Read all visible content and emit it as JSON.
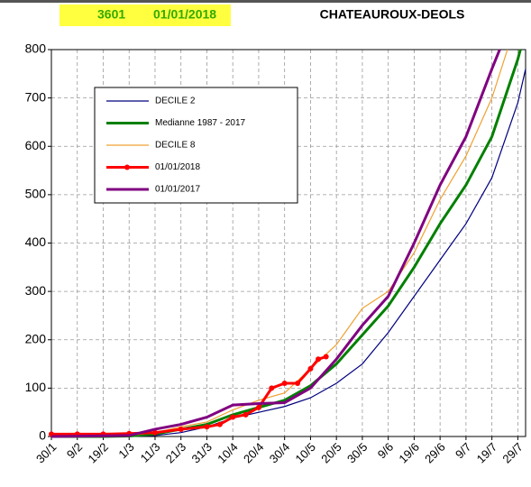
{
  "header": {
    "station": "3601",
    "date": "01/01/2018"
  },
  "chart_data": {
    "type": "line",
    "title": "CHATEAUROUX-DEOLS",
    "xlim": [
      0,
      183
    ],
    "xticks": [
      {
        "value": 0,
        "label": "30/1"
      },
      {
        "value": 10,
        "label": "9/2"
      },
      {
        "value": 20,
        "label": "19/2"
      },
      {
        "value": 30,
        "label": "1/3"
      },
      {
        "value": 40,
        "label": "11/3"
      },
      {
        "value": 50,
        "label": "21/3"
      },
      {
        "value": 60,
        "label": "31/3"
      },
      {
        "value": 70,
        "label": "10/4"
      },
      {
        "value": 80,
        "label": "20/4"
      },
      {
        "value": 90,
        "label": "30/4"
      },
      {
        "value": 100,
        "label": "10/5"
      },
      {
        "value": 110,
        "label": "20/5"
      },
      {
        "value": 120,
        "label": "30/5"
      },
      {
        "value": 130,
        "label": "9/6"
      },
      {
        "value": 140,
        "label": "19/6"
      },
      {
        "value": 150,
        "label": "29/6"
      },
      {
        "value": 160,
        "label": "9/7"
      },
      {
        "value": 170,
        "label": "19/7"
      },
      {
        "value": 180,
        "label": "29/7"
      }
    ],
    "ylim": [
      0,
      800
    ],
    "yticks": [
      0,
      100,
      200,
      300,
      400,
      500,
      600,
      700,
      800
    ],
    "grid": true,
    "series": [
      {
        "name": "DECILE 2",
        "color": "#000080",
        "width": 1.2,
        "markers": false,
        "x": [
          0,
          10,
          20,
          30,
          40,
          50,
          60,
          70,
          80,
          90,
          100,
          110,
          120,
          130,
          140,
          150,
          160,
          170,
          180,
          183
        ],
        "values": [
          0,
          0,
          0,
          0,
          2,
          8,
          20,
          38,
          50,
          62,
          80,
          110,
          150,
          215,
          290,
          365,
          440,
          535,
          690,
          760
        ]
      },
      {
        "name": "Medianne 1987 - 2017",
        "color": "#008000",
        "width": 3,
        "markers": false,
        "x": [
          0,
          10,
          20,
          30,
          40,
          50,
          60,
          70,
          80,
          90,
          100,
          110,
          120,
          130,
          140,
          150,
          160,
          170,
          180,
          181
        ],
        "values": [
          0,
          0,
          0,
          1,
          5,
          15,
          25,
          45,
          60,
          75,
          105,
          150,
          210,
          270,
          350,
          440,
          520,
          620,
          780,
          800
        ]
      },
      {
        "name": "DECILE 8",
        "color": "#f0a030",
        "width": 1.2,
        "markers": false,
        "x": [
          0,
          10,
          20,
          30,
          40,
          50,
          60,
          70,
          80,
          90,
          100,
          110,
          120,
          130,
          140,
          150,
          160,
          170,
          176
        ],
        "values": [
          0,
          0,
          0,
          2,
          8,
          20,
          30,
          55,
          75,
          90,
          140,
          190,
          265,
          300,
          380,
          490,
          580,
          700,
          800
        ]
      },
      {
        "name": "01/01/2018",
        "color": "#ff0000",
        "width": 3,
        "markers": true,
        "x": [
          0,
          10,
          20,
          30,
          40,
          50,
          60,
          65,
          70,
          75,
          80,
          85,
          90,
          95,
          100,
          103,
          106
        ],
        "values": [
          5,
          5,
          5,
          6,
          8,
          15,
          20,
          25,
          40,
          45,
          60,
          100,
          110,
          110,
          140,
          160,
          165
        ]
      },
      {
        "name": "01/01/2017",
        "color": "#800080",
        "width": 3,
        "markers": false,
        "x": [
          0,
          30,
          40,
          50,
          60,
          70,
          80,
          90,
          100,
          110,
          120,
          130,
          140,
          150,
          160,
          170,
          173
        ],
        "values": [
          0,
          2,
          15,
          25,
          40,
          65,
          68,
          70,
          100,
          160,
          230,
          290,
          400,
          520,
          620,
          760,
          800
        ]
      }
    ]
  }
}
